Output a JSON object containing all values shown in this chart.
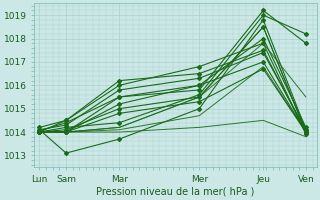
{
  "title": "Pression niveau de la mer( hPa )",
  "x_labels": [
    "Lun",
    "Sam",
    "Mar",
    "Mer",
    "Jeu",
    "Ven"
  ],
  "x_positions": [
    0.0,
    0.5,
    1.5,
    3.0,
    4.2,
    5.0
  ],
  "xlim": [
    -0.1,
    5.2
  ],
  "ylim": [
    1012.5,
    1019.5
  ],
  "yticks": [
    1013,
    1014,
    1015,
    1016,
    1017,
    1018,
    1019
  ],
  "bg_color": "#cce8e6",
  "grid_color": "#aad0cc",
  "line_color": "#1a6b1a",
  "series_with_markers": [
    [
      1014.05,
      1014.4,
      1015.5,
      1015.8,
      1019.2,
      1017.8
    ],
    [
      1014.0,
      1014.2,
      1014.4,
      1015.6,
      1019.0,
      1018.2
    ],
    [
      1014.1,
      1013.1,
      1013.7,
      1015.0,
      1018.8,
      1014.1
    ],
    [
      1014.0,
      1014.1,
      1015.0,
      1015.5,
      1018.5,
      1014.0
    ],
    [
      1014.2,
      1014.5,
      1016.0,
      1016.8,
      1017.8,
      1013.9
    ],
    [
      1014.1,
      1014.3,
      1015.8,
      1016.3,
      1017.4,
      1014.1
    ],
    [
      1014.0,
      1014.0,
      1015.5,
      1016.0,
      1017.0,
      1014.0
    ],
    [
      1014.0,
      1014.0,
      1014.8,
      1015.3,
      1016.7,
      1014.0
    ],
    [
      1014.0,
      1014.5,
      1016.2,
      1016.5,
      1017.5,
      1014.0
    ],
    [
      1014.0,
      1014.0,
      1015.2,
      1016.0,
      1018.0,
      1014.2
    ]
  ],
  "series_straight": [
    [
      1014.0,
      1014.0,
      1014.2,
      1015.5,
      1017.8,
      1015.5
    ],
    [
      1014.0,
      1014.0,
      1014.2,
      1015.5,
      1018.5,
      1014.0
    ],
    [
      1014.0,
      1014.0,
      1014.1,
      1014.7,
      1016.8,
      1014.0
    ],
    [
      1014.0,
      1014.0,
      1014.0,
      1014.2,
      1014.5,
      1013.8
    ]
  ]
}
